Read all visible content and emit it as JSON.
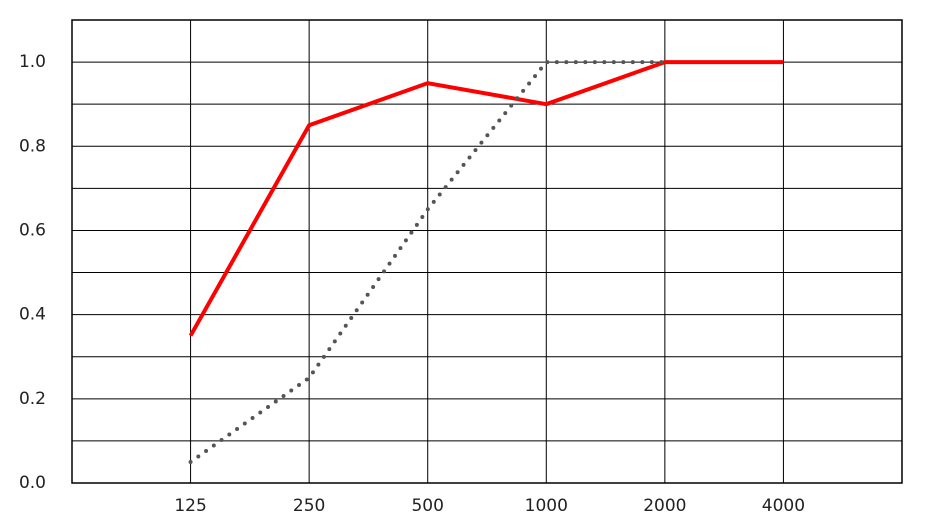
{
  "chart_data": {
    "type": "line",
    "categories": [
      null,
      "125",
      "250",
      "500",
      "1000",
      "2000",
      "4000",
      null
    ],
    "series": [
      {
        "color": "#ff0000",
        "style": "solid",
        "values": [
          null,
          0.35,
          0.85,
          0.95,
          0.9,
          1.0,
          1.0,
          null
        ]
      },
      {
        "color": "#555555",
        "style": "dotted",
        "values": [
          null,
          0.05,
          0.25,
          0.65,
          1.0,
          1.0,
          null,
          null
        ]
      }
    ],
    "ylim": [
      0,
      1.1
    ],
    "yticks": [
      {
        "value": 0,
        "label": "0.0"
      },
      {
        "value": 0.2,
        "label": "0.2"
      },
      {
        "value": 0.4,
        "label": "0.4"
      },
      {
        "value": 0.6,
        "label": "0.6"
      },
      {
        "value": 0.8,
        "label": "0.8"
      },
      {
        "value": 1,
        "label": "1.0"
      }
    ],
    "minor_grid": [
      0.1,
      0.3,
      0.5,
      0.7,
      0.9
    ],
    "grid": true
  }
}
